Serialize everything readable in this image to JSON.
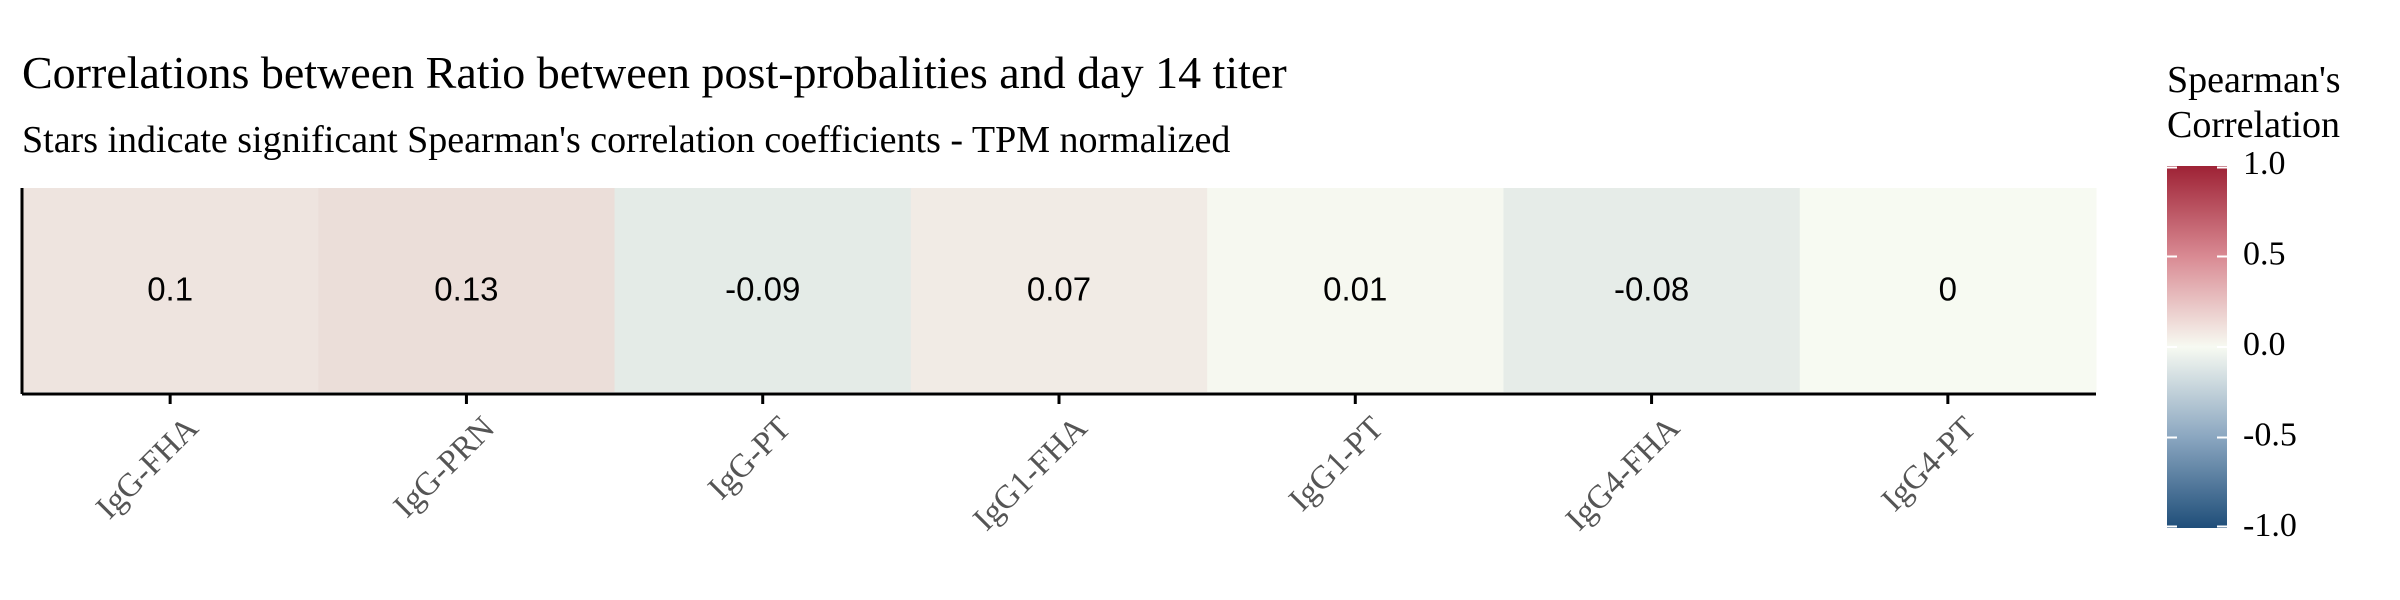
{
  "chart_data": {
    "type": "heatmap",
    "title": "Correlations between Ratio between post-probalities and day 14 titer",
    "subtitle": "Stars indicate significant Spearman's correlation coefficients - TPM normalized",
    "categories": [
      "IgG-FHA",
      "IgG-PRN",
      "IgG-PT",
      "IgG1-FHA",
      "IgG1-PT",
      "IgG4-FHA",
      "IgG4-PT"
    ],
    "values": [
      0.1,
      0.13,
      -0.09,
      0.07,
      0.01,
      -0.08,
      0
    ],
    "labels": [
      "0.1",
      "0.13",
      "-0.09",
      "0.07",
      "0.01",
      "-0.08",
      "0"
    ],
    "legend": {
      "title_line1": "Spearman's",
      "title_line2": "Correlation",
      "range": [
        -1.0,
        1.0
      ],
      "ticks": [
        1.0,
        0.5,
        0.0,
        -0.5,
        -1.0
      ],
      "tick_labels": [
        "1.0",
        "0.5",
        "0.0",
        "-0.5",
        "-1.0"
      ],
      "placement": "right"
    },
    "colors": {
      "low": "#1f4e79",
      "mid": "#f7faf2",
      "high": "#9e2235"
    },
    "grid": false
  }
}
